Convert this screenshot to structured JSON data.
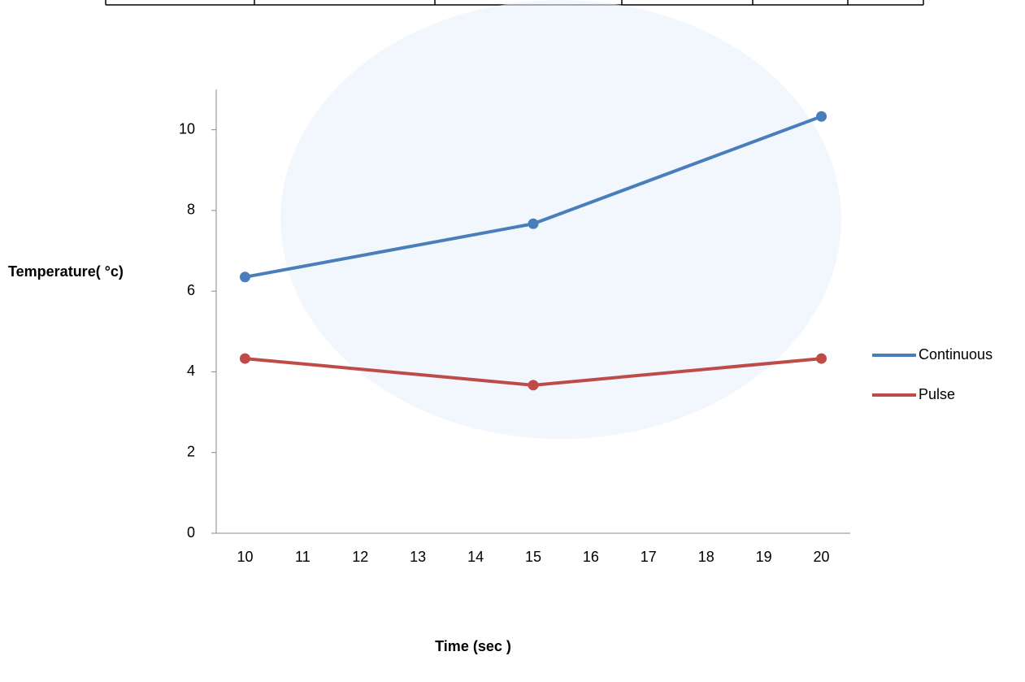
{
  "chart_data": {
    "type": "line",
    "x_label": "Time (sec )",
    "y_label": "Temperature( °c)",
    "x": [
      10,
      15,
      20
    ],
    "series": [
      {
        "name": "Continuous",
        "color": "#4a7ebb",
        "values": [
          6.35,
          7.67,
          10.33
        ]
      },
      {
        "name": "Pulse",
        "color": "#be4b48",
        "values": [
          4.33,
          3.67,
          4.33
        ]
      }
    ],
    "xlim": [
      9.5,
      20.5
    ],
    "xticks": [
      10,
      11,
      12,
      13,
      14,
      15,
      16,
      17,
      18,
      19,
      20
    ],
    "ylim": [
      0,
      11
    ],
    "yticks": [
      0,
      2,
      4,
      6,
      8,
      10
    ],
    "legend": "right"
  }
}
